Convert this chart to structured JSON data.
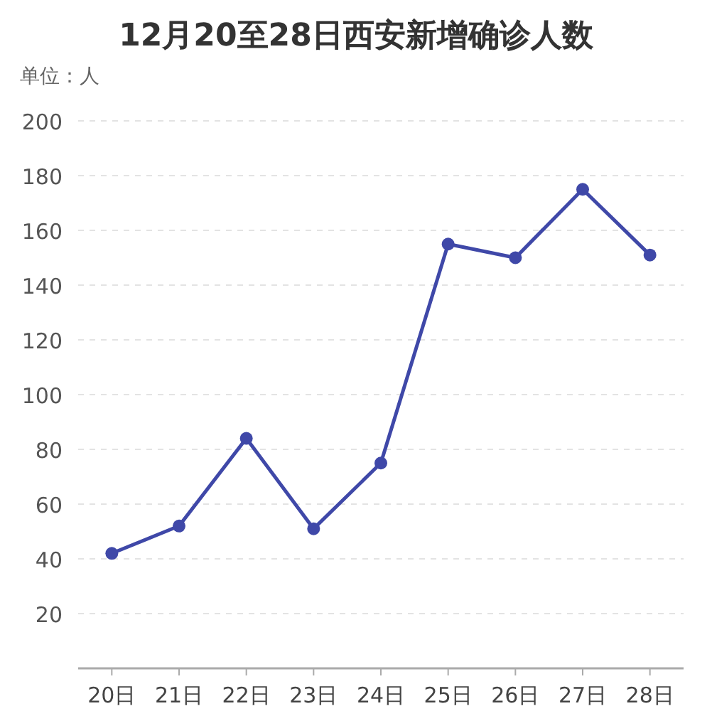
{
  "chart_data": {
    "type": "line",
    "title": "12月20至28日西安新增确诊人数",
    "ylabel": "单位：人",
    "categories": [
      "20日",
      "21日",
      "22日",
      "23日",
      "24日",
      "25日",
      "26日",
      "27日",
      "28日"
    ],
    "series": [
      {
        "color": "#3f48a8",
        "values": [
          42,
          52,
          84,
          51,
          75,
          155,
          150,
          175,
          151
        ]
      }
    ],
    "ylim": [
      0,
      200
    ],
    "yticks": [
      {
        "value": 0,
        "label": null
      },
      20,
      40,
      60,
      80,
      100,
      120,
      140,
      160,
      180,
      200
    ],
    "grid": "y",
    "marker": "circle",
    "line_style": "solid"
  }
}
